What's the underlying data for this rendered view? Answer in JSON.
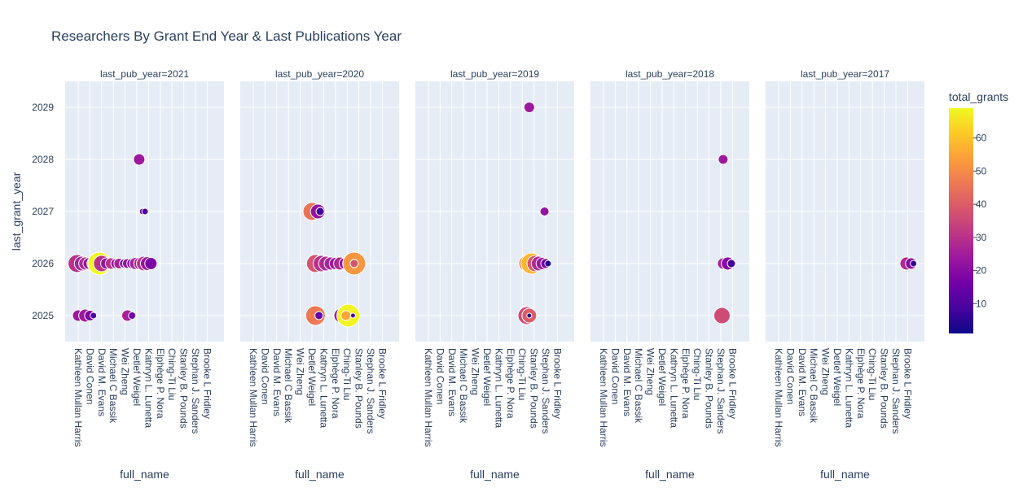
{
  "chart_data": {
    "type": "scatter",
    "title": "Researchers By Grant End Year & Last Publications Year",
    "xlabel": "full_name",
    "ylabel": "last_grant_year",
    "facet_labels": [
      "last_pub_year=2021",
      "last_pub_year=2020",
      "last_pub_year=2019",
      "last_pub_year=2018",
      "last_pub_year=2017"
    ],
    "categories": [
      "Kathleen Mullan Harris",
      "David Conen",
      "David M. Evans",
      "Michael C Bassik",
      "Wei Zheng",
      "Detlef Weigel",
      "Kathryn L. Lunetta",
      "Elphège P. Nora",
      "Ching-Ti Liu",
      "Stanley B. Pounds",
      "Stephan J. Sanders",
      "Brooke L Fridley"
    ],
    "ylim": [
      2024.5,
      2029.5
    ],
    "yticks": [
      2025,
      2026,
      2027,
      2028,
      2029
    ],
    "colorbar": {
      "title": "total_grants",
      "ticks": [
        10,
        20,
        30,
        40,
        50,
        60
      ],
      "min": 1,
      "max": 69,
      "colorscale": [
        "#0d0887",
        "#46039f",
        "#7201a8",
        "#9c179e",
        "#bd3786",
        "#d8576b",
        "#ed7953",
        "#fb9f3a",
        "#fdca26",
        "#f0f921"
      ]
    },
    "facets": [
      {
        "last_pub_year": 2021,
        "points": [
          {
            "x": -0.1,
            "y": 2026,
            "total_grants": 30,
            "size": 22
          },
          {
            "x": 0.3,
            "y": 2026,
            "total_grants": 26,
            "size": 18
          },
          {
            "x": 0.6,
            "y": 2026,
            "total_grants": 28,
            "size": 16
          },
          {
            "x": 0.9,
            "y": 2026,
            "total_grants": 22,
            "size": 14
          },
          {
            "x": 1.3,
            "y": 2026,
            "total_grants": 27,
            "size": 16
          },
          {
            "x": 1.8,
            "y": 2026,
            "total_grants": 69,
            "size": 28
          },
          {
            "x": 2.0,
            "y": 2026,
            "total_grants": 30,
            "size": 20
          },
          {
            "x": 2.4,
            "y": 2026,
            "total_grants": 22,
            "size": 14
          },
          {
            "x": 2.8,
            "y": 2026,
            "total_grants": 30,
            "size": 14
          },
          {
            "x": 3.2,
            "y": 2026,
            "total_grants": 23,
            "size": 12
          },
          {
            "x": 3.5,
            "y": 2026,
            "total_grants": 26,
            "size": 13
          },
          {
            "x": 3.9,
            "y": 2026,
            "total_grants": 18,
            "size": 11
          },
          {
            "x": 4.2,
            "y": 2026,
            "total_grants": 22,
            "size": 12
          },
          {
            "x": 4.6,
            "y": 2026,
            "total_grants": 20,
            "size": 13
          },
          {
            "x": 4.9,
            "y": 2026,
            "total_grants": 26,
            "size": 15
          },
          {
            "x": 5.3,
            "y": 2026,
            "total_grants": 28,
            "size": 16
          },
          {
            "x": 5.6,
            "y": 2026,
            "total_grants": 30,
            "size": 18
          },
          {
            "x": 5.9,
            "y": 2026,
            "total_grants": 22,
            "size": 17
          },
          {
            "x": 6.2,
            "y": 2026,
            "total_grants": 18,
            "size": 15
          },
          {
            "x": 0.0,
            "y": 2025,
            "total_grants": 24,
            "size": 14
          },
          {
            "x": 0.6,
            "y": 2025,
            "total_grants": 24,
            "size": 16
          },
          {
            "x": 1.0,
            "y": 2025,
            "total_grants": 18,
            "size": 13
          },
          {
            "x": 1.3,
            "y": 2025,
            "total_grants": 10,
            "size": 8
          },
          {
            "x": 4.2,
            "y": 2025,
            "total_grants": 26,
            "size": 14
          },
          {
            "x": 4.6,
            "y": 2025,
            "total_grants": 16,
            "size": 9
          },
          {
            "x": 5.2,
            "y": 2028,
            "total_grants": 24,
            "size": 14
          },
          {
            "x": 5.5,
            "y": 2027,
            "total_grants": 12,
            "size": 8
          },
          {
            "x": 5.7,
            "y": 2027,
            "total_grants": 10,
            "size": 8
          }
        ]
      },
      {
        "last_pub_year": 2020,
        "points": [
          {
            "x": 5.0,
            "y": 2027,
            "total_grants": 45,
            "size": 22
          },
          {
            "x": 5.5,
            "y": 2027,
            "total_grants": 22,
            "size": 18
          },
          {
            "x": 5.7,
            "y": 2027,
            "total_grants": 8,
            "size": 10
          },
          {
            "x": 5.3,
            "y": 2026,
            "total_grants": 38,
            "size": 22
          },
          {
            "x": 5.8,
            "y": 2026,
            "total_grants": 30,
            "size": 20
          },
          {
            "x": 6.2,
            "y": 2026,
            "total_grants": 28,
            "size": 18
          },
          {
            "x": 6.6,
            "y": 2026,
            "total_grants": 26,
            "size": 16
          },
          {
            "x": 7.0,
            "y": 2026,
            "total_grants": 24,
            "size": 15
          },
          {
            "x": 7.4,
            "y": 2026,
            "total_grants": 28,
            "size": 16
          },
          {
            "x": 7.8,
            "y": 2026,
            "total_grants": 22,
            "size": 14
          },
          {
            "x": 8.1,
            "y": 2026,
            "total_grants": 20,
            "size": 14
          },
          {
            "x": 8.6,
            "y": 2026,
            "total_grants": 52,
            "size": 28
          },
          {
            "x": 8.6,
            "y": 2026.0,
            "total_grants": 38,
            "size": 10
          },
          {
            "x": 5.3,
            "y": 2025,
            "total_grants": 46,
            "size": 24
          },
          {
            "x": 5.6,
            "y": 2025,
            "total_grants": 14,
            "size": 10
          },
          {
            "x": 7.5,
            "y": 2025,
            "total_grants": 26,
            "size": 18
          },
          {
            "x": 8.1,
            "y": 2025,
            "total_grants": 68,
            "size": 28
          },
          {
            "x": 7.9,
            "y": 2025,
            "total_grants": 55,
            "size": 12
          },
          {
            "x": 8.5,
            "y": 2025,
            "total_grants": 10,
            "size": 6
          }
        ]
      },
      {
        "last_pub_year": 2019,
        "points": [
          {
            "x": 8.6,
            "y": 2029,
            "total_grants": 24,
            "size": 13
          },
          {
            "x": 9.9,
            "y": 2027,
            "total_grants": 22,
            "size": 11
          },
          {
            "x": 8.4,
            "y": 2026,
            "total_grants": 50,
            "size": 20
          },
          {
            "x": 8.8,
            "y": 2026,
            "total_grants": 58,
            "size": 26
          },
          {
            "x": 9.1,
            "y": 2026,
            "total_grants": 38,
            "size": 20
          },
          {
            "x": 9.4,
            "y": 2026,
            "total_grants": 28,
            "size": 18
          },
          {
            "x": 9.7,
            "y": 2026,
            "total_grants": 24,
            "size": 15
          },
          {
            "x": 10.0,
            "y": 2026,
            "total_grants": 16,
            "size": 12
          },
          {
            "x": 10.2,
            "y": 2026,
            "total_grants": 4,
            "size": 8
          },
          {
            "x": 8.4,
            "y": 2025,
            "total_grants": 36,
            "size": 22
          },
          {
            "x": 8.6,
            "y": 2025,
            "total_grants": 40,
            "size": 18
          },
          {
            "x": 8.6,
            "y": 2025,
            "total_grants": 4,
            "size": 6
          }
        ]
      },
      {
        "last_pub_year": 2018,
        "points": [
          {
            "x": 10.2,
            "y": 2028,
            "total_grants": 24,
            "size": 12
          },
          {
            "x": 10.2,
            "y": 2026,
            "total_grants": 26,
            "size": 14
          },
          {
            "x": 10.6,
            "y": 2026,
            "total_grants": 20,
            "size": 16
          },
          {
            "x": 10.9,
            "y": 2026,
            "total_grants": 8,
            "size": 10
          },
          {
            "x": 10.1,
            "y": 2025,
            "total_grants": 36,
            "size": 20
          }
        ]
      },
      {
        "last_pub_year": 2017,
        "points": [
          {
            "x": 10.9,
            "y": 2026,
            "total_grants": 28,
            "size": 16
          },
          {
            "x": 11.3,
            "y": 2026,
            "total_grants": 20,
            "size": 14
          },
          {
            "x": 11.5,
            "y": 2026,
            "total_grants": 6,
            "size": 8
          }
        ]
      }
    ]
  }
}
